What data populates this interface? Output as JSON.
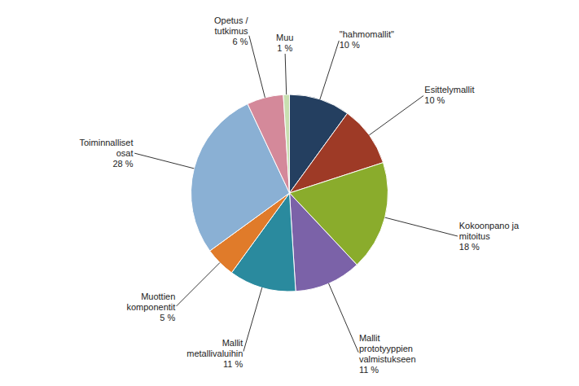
{
  "chart_data": {
    "type": "pie",
    "categories": [
      "\"hahmomallit\"\n10 %",
      "Esittelymallit\n10 %",
      "Kokoonpano ja\nmitoitus\n18 %",
      "Mallit\nprototyyppien\nvalmistukseen\n11 %",
      "Mallit\nmetallivaluihin\n11 %",
      "Muottien\nkomponentit\n5 %",
      "Toiminnalliset\nosat\n28 %",
      "Opetus /\ntutkimus\n6 %",
      "Muu\n1 %"
    ],
    "values": [
      10,
      10,
      18,
      11,
      11,
      5,
      28,
      6,
      1
    ],
    "colors": [
      "#243f60",
      "#9e3a26",
      "#8aac2c",
      "#7b62a8",
      "#2a8a9e",
      "#e07b2a",
      "#8ab0d4",
      "#d4899a",
      "#c8dfb0"
    ]
  }
}
